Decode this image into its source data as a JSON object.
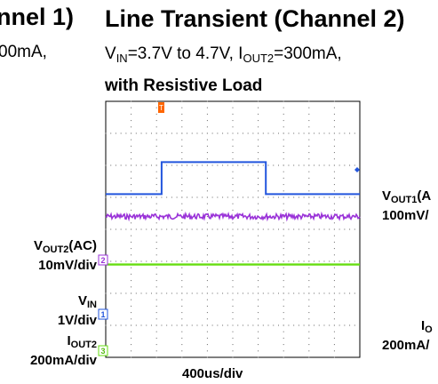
{
  "left_fragment": {
    "title_tail": "nnel 1)",
    "cond_tail": "00mA,"
  },
  "header": {
    "title": "Line Transient (Channel 2)",
    "v_in_main": "V",
    "v_in_sub": "IN",
    "v_in_range": "=3.7V to 4.7V, I",
    "i_out_sub": "OUT2",
    "i_out_value": "=300mA,",
    "load_line": "with Resistive Load"
  },
  "right_fragment": {
    "vout1_main": "V",
    "vout1_sub": "OUT1",
    "vout1_tail": "(A",
    "vout1_scale": "100mV/",
    "iout_main": "I",
    "iout_sub": "O",
    "iout_scale": "200mA/"
  },
  "channel_labels": {
    "ch1": {
      "main": "V",
      "sub": "OUT2",
      "tail": "(AC)",
      "scale": "10mV/div",
      "marker": "2"
    },
    "ch2": {
      "main": "V",
      "sub": "IN",
      "scale": "1V/div",
      "marker": "1"
    },
    "ch3": {
      "main": "I",
      "sub": "OUT2",
      "scale": "200mA/div",
      "marker": "3"
    }
  },
  "x_scale": "400us/div",
  "colors": {
    "vin": "#2255dd",
    "vout": "#9a33d8",
    "iout": "#66dd11",
    "trigger": "#ff6600",
    "grid": "#000000"
  },
  "chart_data": {
    "type": "line",
    "title": "Line Transient (Channel 2)",
    "xlabel": "400us/div",
    "x_divisions": 10,
    "y_divisions": 8,
    "grid": true,
    "series": [
      {
        "name": "VIN",
        "scale": "1V/div",
        "x": [
          0,
          2.2,
          2.2,
          6.3,
          6.3,
          10
        ],
        "y": [
          3.7,
          3.7,
          4.7,
          4.7,
          3.7,
          3.7
        ]
      },
      {
        "name": "VOUT2(AC)",
        "scale": "10mV/div",
        "x": [
          0,
          10
        ],
        "y": [
          0,
          0
        ]
      },
      {
        "name": "IOUT2",
        "scale": "200mA/div",
        "x": [
          0,
          10
        ],
        "y": [
          300,
          300
        ]
      }
    ]
  }
}
